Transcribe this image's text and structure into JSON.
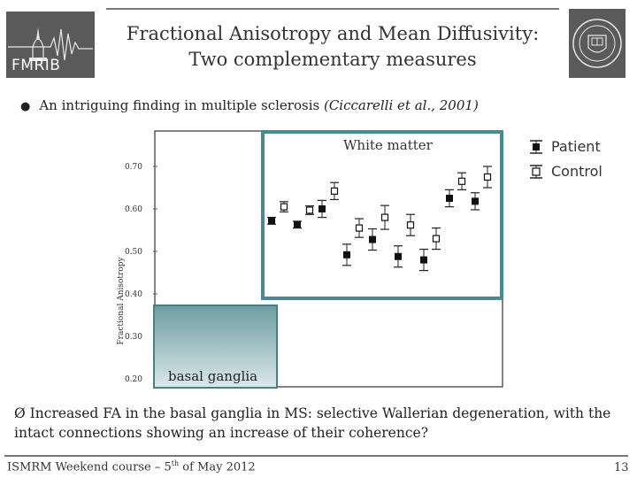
{
  "logos": {
    "left_text": "FMRIB",
    "left_icon": "fmrib-dome-logo-icon",
    "right_icon": "oxford-crest-icon"
  },
  "title": {
    "line1": "Fractional Anisotropy and Mean Diffusivity:",
    "line2": "Two complementary measures"
  },
  "bullet": {
    "text": "An intriguing finding in multiple sclerosis ",
    "citation": "(Ciccarelli et al., 2001)"
  },
  "chart_data": {
    "type": "scatter",
    "ylabel": "Fractional Anisotropy",
    "yticks": [
      "0.20",
      "0.30",
      "0.40",
      "0.50",
      "0.60",
      "0.70"
    ],
    "ylim": [
      0.2,
      0.8
    ],
    "legend_position": "right",
    "series": [
      {
        "name": "Patient",
        "marker": "filled-square",
        "points": [
          {
            "i": 0,
            "y": 0.572,
            "err": 0.008
          },
          {
            "i": 1,
            "y": 0.563,
            "err": 0.008
          },
          {
            "i": 2,
            "y": 0.6,
            "err": 0.02
          },
          {
            "i": 3,
            "y": 0.492,
            "err": 0.025
          },
          {
            "i": 4,
            "y": 0.528,
            "err": 0.025
          },
          {
            "i": 5,
            "y": 0.488,
            "err": 0.025
          },
          {
            "i": 6,
            "y": 0.48,
            "err": 0.025
          },
          {
            "i": 7,
            "y": 0.625,
            "err": 0.02
          },
          {
            "i": 8,
            "y": 0.618,
            "err": 0.02
          }
        ]
      },
      {
        "name": "Control",
        "marker": "open-square",
        "points": [
          {
            "i": 0,
            "y": 0.605,
            "err": 0.012
          },
          {
            "i": 1,
            "y": 0.597,
            "err": 0.01
          },
          {
            "i": 2,
            "y": 0.642,
            "err": 0.02
          },
          {
            "i": 3,
            "y": 0.555,
            "err": 0.022
          },
          {
            "i": 4,
            "y": 0.58,
            "err": 0.028
          },
          {
            "i": 5,
            "y": 0.562,
            "err": 0.025
          },
          {
            "i": 6,
            "y": 0.53,
            "err": 0.025
          },
          {
            "i": 7,
            "y": 0.665,
            "err": 0.02
          },
          {
            "i": 8,
            "y": 0.675,
            "err": 0.025
          }
        ]
      }
    ],
    "regions": [
      {
        "label": "White matter",
        "color": "#4a8a8f"
      },
      {
        "label": "basal ganglia",
        "color": "#6a9ea3"
      }
    ]
  },
  "legend": {
    "patient": "Patient",
    "control": "Control"
  },
  "conclusion": {
    "arrow": "Ø",
    "text": "Increased FA in the basal ganglia in MS: selective Wallerian degeneration, with the intact connections showing an increase of their coherence?"
  },
  "footer": {
    "course": "ISMRM Weekend course – 5",
    "sup": "th",
    "rest": " of May 2012",
    "page": "13"
  }
}
